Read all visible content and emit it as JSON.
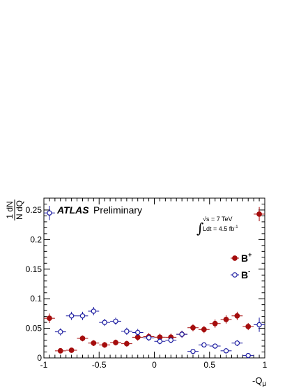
{
  "chart_data": {
    "type": "scatter",
    "x_tick_labels": [
      "-1",
      "-0.5",
      "0",
      "0.5",
      "1"
    ],
    "y_tick_labels": [
      "0",
      "0.05",
      "0.1",
      "0.15",
      "0.2",
      "0.25"
    ],
    "x_ticks": [
      -1,
      -0.5,
      0,
      0.5,
      1
    ],
    "y_ticks": [
      0,
      0.05,
      0.1,
      0.15,
      0.2,
      0.25
    ],
    "xlim": [
      -1,
      1
    ],
    "ylim": [
      0,
      0.27
    ],
    "xlabel": "-Q",
    "xlabel_sub": "μ",
    "ylabel": {
      "num": "1 dN",
      "den": "N dQ"
    },
    "legend_position": "right",
    "annotations": {
      "atlas": "ATLAS",
      "preliminary": "Preliminary",
      "energy": "√s = 7 TeV",
      "integral_sign": "∫",
      "lumi_prefix": "Ldt = 4.5 fb",
      "lumi_exp": "-1"
    },
    "series": [
      {
        "name": "B",
        "name_sup": "+",
        "color": "#a50d0d",
        "marker": "filled-circle",
        "x": [
          -0.95,
          -0.85,
          -0.75,
          -0.65,
          -0.55,
          -0.45,
          -0.35,
          -0.25,
          -0.15,
          -0.05,
          0.05,
          0.15,
          0.25,
          0.35,
          0.45,
          0.55,
          0.65,
          0.75,
          0.85,
          0.95
        ],
        "y": [
          0.067,
          0.012,
          0.013,
          0.033,
          0.025,
          0.022,
          0.026,
          0.024,
          0.035,
          0.036,
          0.035,
          0.035,
          0.04,
          0.051,
          0.048,
          0.058,
          0.065,
          0.071,
          0.053,
          0.243
        ],
        "yerr": [
          0.008,
          0.004,
          0.004,
          0.005,
          0.005,
          0.005,
          0.005,
          0.005,
          0.006,
          0.006,
          0.006,
          0.006,
          0.006,
          0.006,
          0.006,
          0.007,
          0.007,
          0.007,
          0.006,
          0.012
        ]
      },
      {
        "name": "B",
        "name_sup": "-",
        "color": "#1a1aa0",
        "marker": "open-circle",
        "x": [
          -0.95,
          -0.85,
          -0.75,
          -0.65,
          -0.55,
          -0.45,
          -0.35,
          -0.25,
          -0.15,
          -0.05,
          0.05,
          0.15,
          0.25,
          0.35,
          0.45,
          0.55,
          0.65,
          0.75,
          0.85,
          0.95
        ],
        "y": [
          0.245,
          0.044,
          0.071,
          0.071,
          0.079,
          0.06,
          0.062,
          0.045,
          0.043,
          0.034,
          0.028,
          0.03,
          0.04,
          0.011,
          0.022,
          0.02,
          0.012,
          0.025,
          0.004,
          0.056
        ],
        "yerr": [
          0.012,
          0.006,
          0.007,
          0.007,
          0.007,
          0.006,
          0.006,
          0.006,
          0.006,
          0.005,
          0.005,
          0.005,
          0.006,
          0.004,
          0.004,
          0.004,
          0.004,
          0.005,
          0.002,
          0.012
        ]
      }
    ]
  }
}
